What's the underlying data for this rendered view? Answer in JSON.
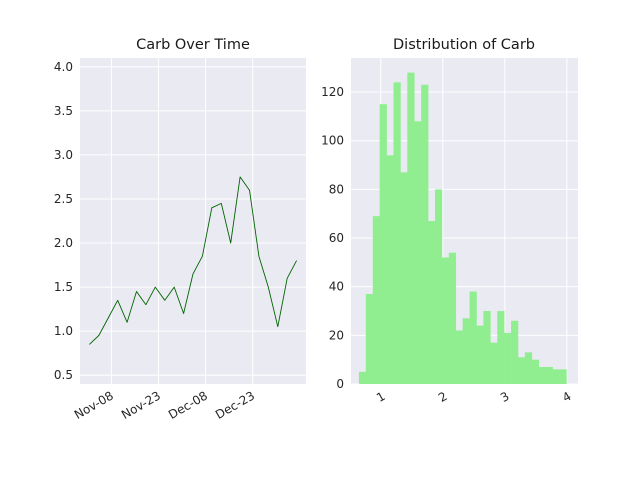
{
  "chart_data": [
    {
      "type": "line",
      "title": "Carb Over Time",
      "xlabel": "",
      "ylabel": "",
      "x_tick_labels": [
        "Nov-08",
        "Nov-23",
        "Dec-08",
        "Dec-23"
      ],
      "x_tick_dates": [
        "2023-11-08",
        "2023-11-23",
        "2023-12-08",
        "2023-12-23"
      ],
      "xlim": [
        "2023-10-29",
        "2024-01-09"
      ],
      "ylim": [
        0.4,
        4.1
      ],
      "y_ticks": [
        0.5,
        1.0,
        1.5,
        2.0,
        2.5,
        3.0,
        3.5,
        4.0
      ],
      "y_tick_labels": [
        "0.5",
        "1.0",
        "1.5",
        "2.0",
        "2.5",
        "3.0",
        "3.5",
        "4.0"
      ],
      "grid": true,
      "color": "#006400",
      "series": [
        {
          "x": [
            "2023-11-01",
            "2023-11-04",
            "2023-11-07",
            "2023-11-10",
            "2023-11-13",
            "2023-11-16",
            "2023-11-19",
            "2023-11-22",
            "2023-11-25",
            "2023-11-28",
            "2023-12-01",
            "2023-12-04",
            "2023-12-07",
            "2023-12-10",
            "2023-12-13",
            "2023-12-16",
            "2023-12-19",
            "2023-12-22",
            "2023-12-25",
            "2023-12-28",
            "2023-12-31",
            "2024-01-03",
            "2024-01-06"
          ],
          "y": [
            0.85,
            0.95,
            1.15,
            1.35,
            1.1,
            1.45,
            1.3,
            1.5,
            1.35,
            1.5,
            1.2,
            1.65,
            1.85,
            2.4,
            2.45,
            2.0,
            2.75,
            2.6,
            1.85,
            1.5,
            1.05,
            1.6,
            1.8
          ]
        }
      ]
    },
    {
      "type": "bar",
      "title": "Distribution of Carb",
      "xlabel": "",
      "ylabel": "",
      "xlim": [
        0.52,
        4.18
      ],
      "ylim": [
        0,
        134
      ],
      "x_ticks": [
        1,
        2,
        3,
        4
      ],
      "x_tick_labels": [
        "1",
        "2",
        "3",
        "4"
      ],
      "y_ticks": [
        0,
        20,
        40,
        60,
        80,
        100,
        120
      ],
      "y_tick_labels": [
        "0",
        "20",
        "40",
        "60",
        "80",
        "100",
        "120"
      ],
      "grid": true,
      "color": "#90ee90",
      "bin_edges": [
        0.648,
        0.759,
        0.871,
        0.982,
        1.094,
        1.205,
        1.317,
        1.428,
        1.54,
        1.651,
        1.763,
        1.874,
        1.986,
        2.097,
        2.209,
        2.32,
        2.432,
        2.543,
        2.655,
        2.766,
        2.878,
        2.989,
        3.101,
        3.212,
        3.324,
        3.435,
        3.547,
        3.658,
        3.77,
        3.881,
        3.993
      ],
      "values": [
        5,
        37,
        69,
        115,
        94,
        124,
        87,
        128,
        108,
        123,
        67,
        80,
        52,
        54,
        22,
        27,
        38,
        24,
        30,
        17,
        30,
        21,
        26,
        11,
        13,
        10,
        7,
        7,
        6,
        6
      ]
    }
  ]
}
